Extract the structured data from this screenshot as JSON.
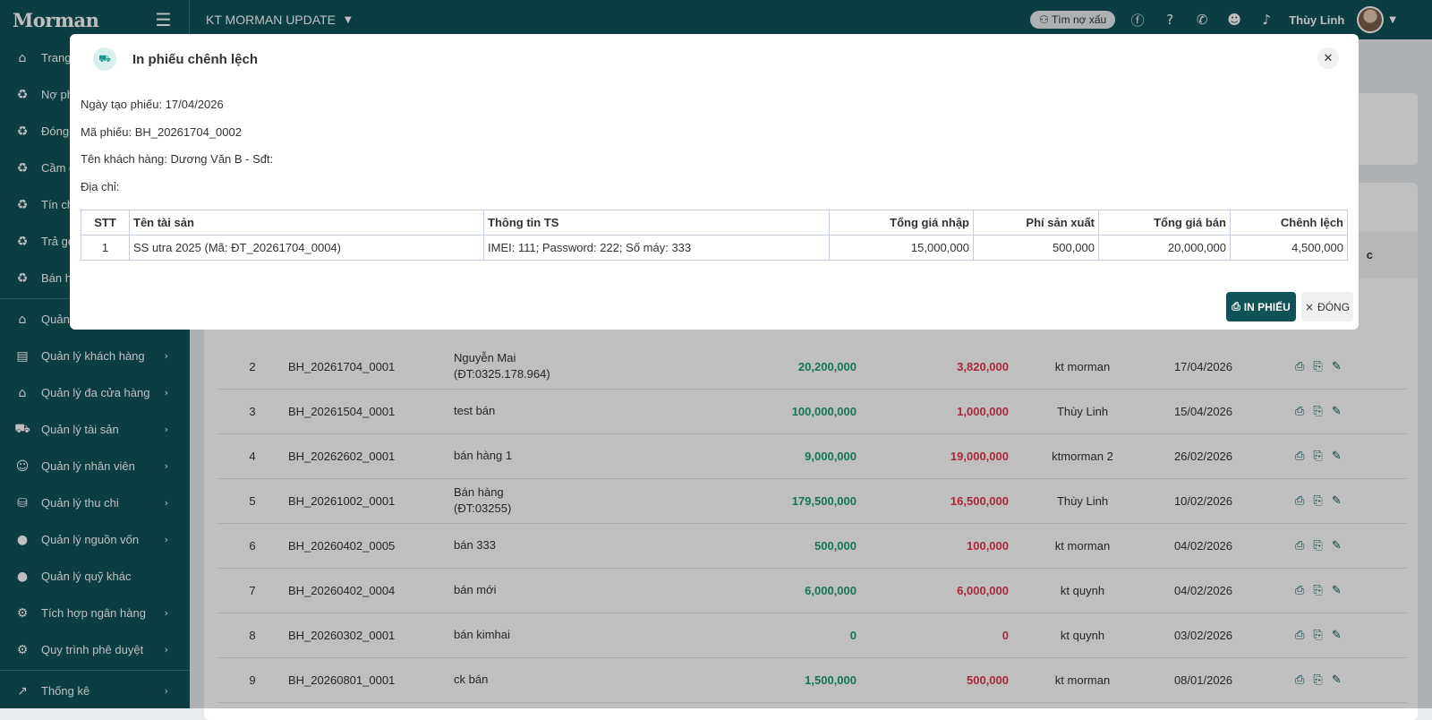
{
  "app": {
    "logo": "Morman",
    "store": "KT MORMAN UPDATE"
  },
  "topbar": {
    "bad_debt": "Tìm nợ xấu",
    "user_name": "Thùy Linh"
  },
  "sidebar": {
    "items_top": [
      {
        "label": "Trang",
        "icon": "⌂"
      },
      {
        "label": "Nợ ph",
        "icon": "♻"
      },
      {
        "label": "Đóng",
        "icon": "♻"
      },
      {
        "label": "Cầm c",
        "icon": "♻"
      },
      {
        "label": "Tín ch",
        "icon": "♻"
      },
      {
        "label": "Trả gó",
        "icon": "♻"
      },
      {
        "label": "Bán h",
        "icon": "♻"
      }
    ],
    "items_bottom": [
      {
        "label": "Quản",
        "icon": "⌂",
        "chev": ""
      },
      {
        "label": "Quản lý khách hàng",
        "icon": "▤",
        "chev": "›"
      },
      {
        "label": "Quản lý đa cửa hàng",
        "icon": "⌂",
        "chev": "›"
      },
      {
        "label": "Quản lý tài sản",
        "icon": "⛟",
        "chev": "›"
      },
      {
        "label": "Quản lý nhân viên",
        "icon": "☺",
        "chev": "›"
      },
      {
        "label": "Quản lý thu chi",
        "icon": "⛁",
        "chev": "›"
      },
      {
        "label": "Quản lý nguồn vốn",
        "icon": "●",
        "chev": "›"
      },
      {
        "label": "Quản lý quỹ khác",
        "icon": "●",
        "chev": ""
      },
      {
        "label": "Tích hợp ngân hàng",
        "icon": "⚙",
        "chev": "›"
      },
      {
        "label": "Quy trình phê duyệt",
        "icon": "⚙",
        "chev": "›"
      }
    ],
    "stats": {
      "label": "Thống kê",
      "icon": "↗",
      "chev": "›"
    }
  },
  "list": {
    "rows": [
      {
        "stt": "2",
        "code": "BH_20261704_0001",
        "name": "Nguyễn Mai",
        "phone": "(ĐT:0325.178.964)",
        "total": "20,200,000",
        "diff": "3,820,000",
        "staff": "kt morman",
        "date": "17/04/2026"
      },
      {
        "stt": "3",
        "code": "BH_20261504_0001",
        "name": "test bán",
        "phone": "",
        "total": "100,000,000",
        "diff": "1,000,000",
        "staff": "Thùy Linh",
        "date": "15/04/2026"
      },
      {
        "stt": "4",
        "code": "BH_20262602_0001",
        "name": "bán hàng 1",
        "phone": "",
        "total": "9,000,000",
        "diff": "19,000,000",
        "staff": "ktmorman 2",
        "date": "26/02/2026"
      },
      {
        "stt": "5",
        "code": "BH_20261002_0001",
        "name": "Bán hàng",
        "phone": "(ĐT:03255)",
        "total": "179,500,000",
        "diff": "16,500,000",
        "staff": "Thùy Linh",
        "date": "10/02/2026"
      },
      {
        "stt": "6",
        "code": "BH_20260402_0005",
        "name": "bán 333",
        "phone": "",
        "total": "500,000",
        "diff": "100,000",
        "staff": "kt morman",
        "date": "04/02/2026"
      },
      {
        "stt": "7",
        "code": "BH_20260402_0004",
        "name": "bán mới",
        "phone": "",
        "total": "6,000,000",
        "diff": "6,000,000",
        "staff": "kt quynh",
        "date": "04/02/2026"
      },
      {
        "stt": "8",
        "code": "BH_20260302_0001",
        "name": "bán kimhai",
        "phone": "",
        "total": "0",
        "diff": "0",
        "staff": "kt quynh",
        "date": "03/02/2026"
      },
      {
        "stt": "9",
        "code": "BH_20260801_0001",
        "name": "ck bán",
        "phone": "",
        "total": "1,500,000",
        "diff": "500,000",
        "staff": "kt morman",
        "date": "08/01/2026"
      }
    ],
    "partial_header": "c"
  },
  "modal": {
    "title": "In phiếu chênh lệch",
    "created": "Ngày tạo phiếu: 17/04/2026",
    "code": "Mã phiếu: BH_20261704_0002",
    "customer": "Tên khách hàng: Dương Văn B - Sđt:",
    "address": "Địa chỉ:",
    "headers": {
      "stt": "STT",
      "asset": "Tên tài sản",
      "info": "Thông tin TS",
      "import": "Tổng giá nhập",
      "fee": "Phí sản xuất",
      "sale": "Tổng giá bán",
      "diff": "Chênh lệch"
    },
    "row": {
      "stt": "1",
      "asset": "SS utra 2025 (Mã: ĐT_20261704_0004)",
      "info": "IMEI: 111; Password: 222; Số máy: 333",
      "import": "15,000,000",
      "fee": "500,000",
      "sale": "20,000,000",
      "diff": "4,500,000"
    },
    "print_label": "IN PHIẾU",
    "close_label": "ĐÓNG"
  }
}
